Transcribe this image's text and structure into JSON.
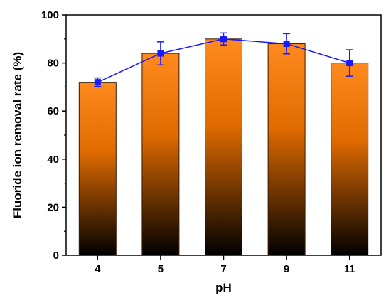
{
  "chart_data": {
    "type": "bar",
    "title": "",
    "xlabel": "pH",
    "ylabel": "Fluoride ion removal rate (%)",
    "categories": [
      "4",
      "5",
      "7",
      "9",
      "11"
    ],
    "ylim": [
      0,
      100
    ],
    "yticks": [
      "0",
      "20",
      "40",
      "60",
      "80",
      "100"
    ],
    "grid": false,
    "series": [
      {
        "kind": "bar",
        "values": [
          72,
          84,
          90,
          88,
          80
        ],
        "fill_gradient": [
          "#ff8a1e",
          "#e06b00",
          "#000000"
        ]
      },
      {
        "kind": "line",
        "marker": "square",
        "color": "#1a1aff",
        "values": [
          72,
          84,
          90,
          88,
          80
        ],
        "error": [
          1.8,
          4.8,
          2.5,
          4.2,
          5.5
        ]
      }
    ]
  }
}
